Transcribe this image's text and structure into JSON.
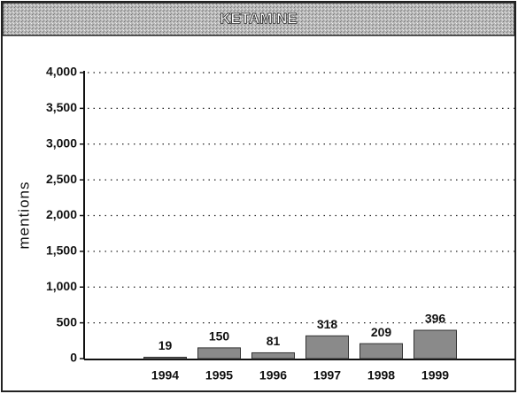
{
  "chart_data": {
    "type": "bar",
    "title": "KETAMINE",
    "y_label": "mentions",
    "categories": [
      "1994",
      "1995",
      "1996",
      "1997",
      "1998",
      "1999"
    ],
    "values": [
      19,
      150,
      81,
      318,
      209,
      396
    ],
    "color": "#8a8a8a",
    "ylim": [
      0,
      4000
    ],
    "yticks": [
      0,
      500,
      {
        "value": 1000,
        "label": "1,000"
      },
      {
        "value": 1500,
        "label": "1,500"
      },
      {
        "value": 2000,
        "label": "2,000"
      },
      {
        "value": 2500,
        "label": "2,500"
      },
      {
        "value": 3000,
        "label": "3,000"
      },
      {
        "value": 3500,
        "label": "3,500"
      },
      {
        "value": 4000,
        "label": "4,000"
      }
    ],
    "grid": true
  }
}
